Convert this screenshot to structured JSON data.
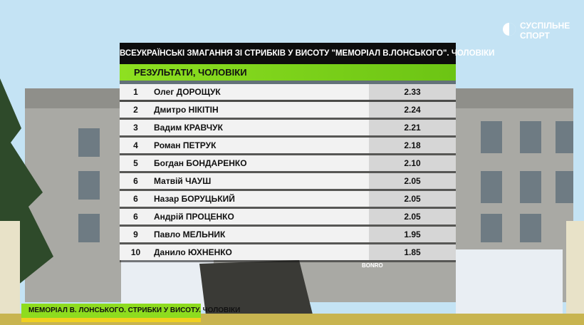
{
  "logo": {
    "line1": "СУСПІЛЬНЕ",
    "line2": "СПОРТ"
  },
  "background_text": "BONRO",
  "table": {
    "title": "ВСЕУКРАЇНСЬКІ ЗМАГАННЯ ЗІ СТРИБКІВ У ВИСОТУ \"МЕМОРІАЛ В.ЛОНСЬКОГО\". ЧОЛОВІКИ",
    "subtitle": "РЕЗУЛЬТАТИ, ЧОЛОВІКИ",
    "rows": [
      [
        "1",
        "Олег ДОРОЩУК",
        "2.33"
      ],
      [
        "2",
        "Дмитро НІКІТІН",
        "2.24"
      ],
      [
        "3",
        "Вадим КРАВЧУК",
        "2.21"
      ],
      [
        "4",
        "Роман ПЕТРУК",
        "2.18"
      ],
      [
        "5",
        "Богдан БОНДАРЕНКО",
        "2.10"
      ],
      [
        "6",
        "Матвій ЧАУШ",
        "2.05"
      ],
      [
        "6",
        "Назар БОРУЦЬКИЙ",
        "2.05"
      ],
      [
        "6",
        "Андрій ПРОЦЕНКО",
        "2.05"
      ],
      [
        "9",
        "Павло МЕЛЬНИК",
        "1.95"
      ],
      [
        "10",
        "Данило ЮХНЕНКО",
        "1.85"
      ]
    ]
  },
  "ticker": "МЕМОРІАЛ  В. ЛОНСЬКОГО. СТРИБКИ У ВИСОТУ. ЧОЛОВІКИ"
}
